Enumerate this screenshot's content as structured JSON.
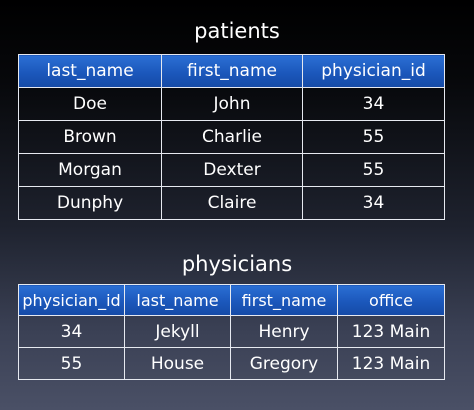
{
  "patients": {
    "title": "patients",
    "columns": [
      "last_name",
      "first_name",
      "physician_id"
    ],
    "rows": [
      [
        "Doe",
        "John",
        "34"
      ],
      [
        "Brown",
        "Charlie",
        "55"
      ],
      [
        "Morgan",
        "Dexter",
        "55"
      ],
      [
        "Dunphy",
        "Claire",
        "34"
      ]
    ]
  },
  "physicians": {
    "title": "physicians",
    "columns": [
      "physician_id",
      "last_name",
      "first_name",
      "office"
    ],
    "rows": [
      [
        "34",
        "Jekyll",
        "Henry",
        "123 Main"
      ],
      [
        "55",
        "House",
        "Gregory",
        "123 Main"
      ]
    ]
  },
  "colors": {
    "header_fill": "#1b57bb",
    "grid_line": "#e6e9f0",
    "text": "#ffffff"
  }
}
